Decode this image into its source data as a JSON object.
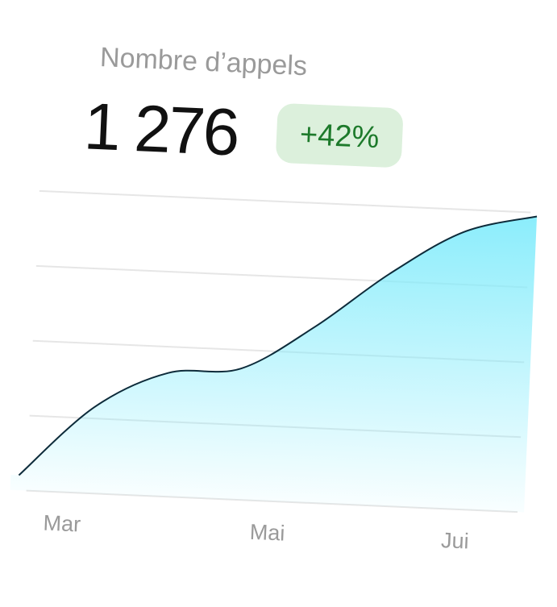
{
  "chart_data": {
    "type": "area",
    "title": "Nombre d’appels",
    "total": "1 276",
    "change": "+42%",
    "x_labels": [
      "Mar",
      "Mai",
      "Jui"
    ],
    "values": [
      0.2,
      1.15,
      1.65,
      1.75,
      2.35,
      3.1,
      3.7,
      3.95
    ],
    "line_color": "#0d2b3a",
    "fill_color": "#7eebfb",
    "grid": true
  }
}
